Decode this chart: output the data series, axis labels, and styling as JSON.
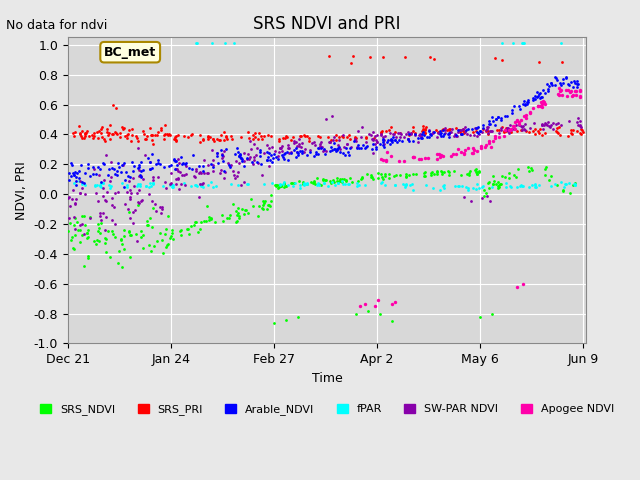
{
  "title": "SRS NDVI and PRI",
  "no_data_text": "No data for ndvi",
  "ylabel": "NDVI, PRI",
  "xlabel": "Time",
  "ylim": [
    -1.0,
    1.05
  ],
  "xlim_days": [
    0,
    171
  ],
  "bg_color": "#e8e8e8",
  "plot_bg": "#d8d8d8",
  "annotation_box": "BC_met",
  "x_tick_labels": [
    "Dec 21",
    "Jan 24",
    "Feb 27",
    "Apr 2",
    "May 6",
    "Jun 9"
  ],
  "x_tick_positions": [
    0,
    34,
    68,
    102,
    136,
    170
  ],
  "legend_items": [
    {
      "label": "SRS_NDVI",
      "color": "#00ff00"
    },
    {
      "label": "SRS_PRI",
      "color": "#ff0000"
    },
    {
      "label": "Arable_NDVI",
      "color": "#0000ff"
    },
    {
      "label": "fPAR",
      "color": "#00ffff"
    },
    {
      "label": "SW-PAR NDVI",
      "color": "#8800aa"
    },
    {
      "label": "Apogee NDVI",
      "color": "#ff00aa"
    }
  ],
  "colors": {
    "SRS_NDVI": "#00ff00",
    "SRS_PRI": "#ff0000",
    "Arable_NDVI": "#0000ff",
    "fPAR": "#00ffff",
    "SW-PAR NDVI": "#8800aa",
    "Apogee NDVI": "#ff00aa"
  }
}
